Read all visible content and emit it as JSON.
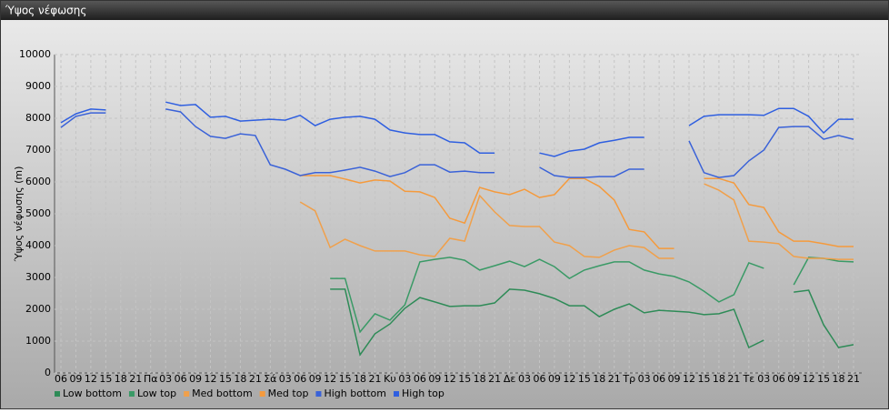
{
  "chart_data": {
    "type": "line",
    "title": "Ύψος νέφωσης",
    "y_label": "Ύψος νέφωσης (m)",
    "categories": [
      "06",
      "09",
      "12",
      "15",
      "18",
      "21",
      "Πα",
      "03",
      "06",
      "09",
      "12",
      "15",
      "18",
      "21",
      "Σά",
      "03",
      "06",
      "09",
      "12",
      "15",
      "18",
      "21",
      "Κυ",
      "03",
      "06",
      "09",
      "12",
      "15",
      "18",
      "21",
      "Δε",
      "03",
      "06",
      "09",
      "12",
      "15",
      "18",
      "21",
      "Τρ",
      "03",
      "06",
      "09",
      "12",
      "15",
      "18",
      "21",
      "Τε",
      "03",
      "06",
      "09",
      "12",
      "15",
      "18",
      "21"
    ],
    "ylim": [
      0,
      10000
    ],
    "yticks": [
      0,
      1000,
      2000,
      3000,
      4000,
      5000,
      6000,
      7000,
      8000,
      9000,
      10000
    ],
    "grid": true,
    "legend": "bottom",
    "series": [
      {
        "name": "Low bottom",
        "color": "#2e8b57",
        "values": [
          null,
          null,
          null,
          null,
          null,
          null,
          null,
          null,
          null,
          null,
          null,
          null,
          null,
          null,
          null,
          null,
          null,
          null,
          2630,
          2630,
          570,
          1230,
          1540,
          2030,
          2370,
          2230,
          2090,
          2110,
          2110,
          2200,
          2630,
          2600,
          2490,
          2340,
          2110,
          2110,
          1770,
          2000,
          2170,
          1890,
          1970,
          1940,
          1910,
          1830,
          1860,
          2000,
          800,
          1030,
          null,
          2540,
          2600,
          1510,
          800,
          890
        ]
      },
      {
        "name": "Low top",
        "color": "#3a9a66",
        "values": [
          null,
          null,
          null,
          null,
          null,
          null,
          null,
          null,
          null,
          null,
          null,
          null,
          null,
          null,
          null,
          null,
          null,
          null,
          2970,
          2970,
          1290,
          1860,
          1660,
          2140,
          3490,
          3570,
          3630,
          3540,
          3230,
          3370,
          3510,
          3340,
          3570,
          3340,
          2970,
          3230,
          3370,
          3490,
          3490,
          3230,
          3110,
          3030,
          2860,
          2570,
          2230,
          2460,
          3460,
          3290,
          null,
          2770,
          3630,
          3600,
          3510,
          3490
        ]
      },
      {
        "name": "Med bottom",
        "color": "#f0a04b",
        "values": [
          null,
          null,
          null,
          null,
          null,
          null,
          null,
          null,
          null,
          null,
          null,
          null,
          null,
          null,
          null,
          null,
          5370,
          5090,
          3940,
          4200,
          4000,
          3830,
          3830,
          3830,
          3710,
          3660,
          4230,
          4140,
          5570,
          5060,
          4630,
          4600,
          4600,
          4110,
          4000,
          3660,
          3630,
          3860,
          4000,
          3940,
          3600,
          3600,
          null,
          5940,
          5740,
          5430,
          4140,
          4110,
          4060,
          3660,
          3600,
          3600,
          3570,
          3570
        ]
      },
      {
        "name": "Med top",
        "color": "#f59a3c",
        "values": [
          null,
          null,
          null,
          null,
          null,
          null,
          null,
          null,
          null,
          null,
          null,
          null,
          null,
          null,
          null,
          null,
          6200,
          6200,
          6200,
          6090,
          5970,
          6060,
          6030,
          5710,
          5690,
          5510,
          4860,
          4710,
          5830,
          5690,
          5600,
          5770,
          5510,
          5600,
          6110,
          6110,
          5860,
          5430,
          4510,
          4430,
          3910,
          3910,
          null,
          6110,
          6110,
          5970,
          5290,
          5200,
          4430,
          4140,
          4140,
          4060,
          3970,
          3970
        ]
      },
      {
        "name": "High bottom",
        "color": "#3a62d8",
        "values": [
          7710,
          8060,
          8170,
          8170,
          null,
          null,
          null,
          8290,
          8200,
          7740,
          7430,
          7370,
          7510,
          7460,
          6540,
          6400,
          6200,
          6290,
          6290,
          6370,
          6460,
          6340,
          6170,
          6290,
          6540,
          6540,
          6310,
          6340,
          6290,
          6290,
          null,
          null,
          6460,
          6200,
          6140,
          6140,
          6170,
          6170,
          6400,
          6400,
          null,
          null,
          7290,
          6290,
          6140,
          6200,
          6660,
          7000,
          7710,
          7740,
          7740,
          7340,
          7460,
          7340
        ]
      },
      {
        "name": "High top",
        "color": "#2f5fe0",
        "values": [
          7860,
          8140,
          8290,
          8260,
          null,
          null,
          null,
          8510,
          8400,
          8430,
          8030,
          8060,
          7910,
          7940,
          7970,
          7940,
          8090,
          7770,
          7970,
          8030,
          8060,
          7970,
          7630,
          7540,
          7490,
          7490,
          7260,
          7230,
          6910,
          6910,
          null,
          null,
          6910,
          6800,
          6970,
          7030,
          7230,
          7310,
          7400,
          7400,
          null,
          null,
          7770,
          8060,
          8110,
          8110,
          8110,
          8090,
          8310,
          8310,
          8060,
          7540,
          7970,
          7970
        ]
      }
    ]
  }
}
